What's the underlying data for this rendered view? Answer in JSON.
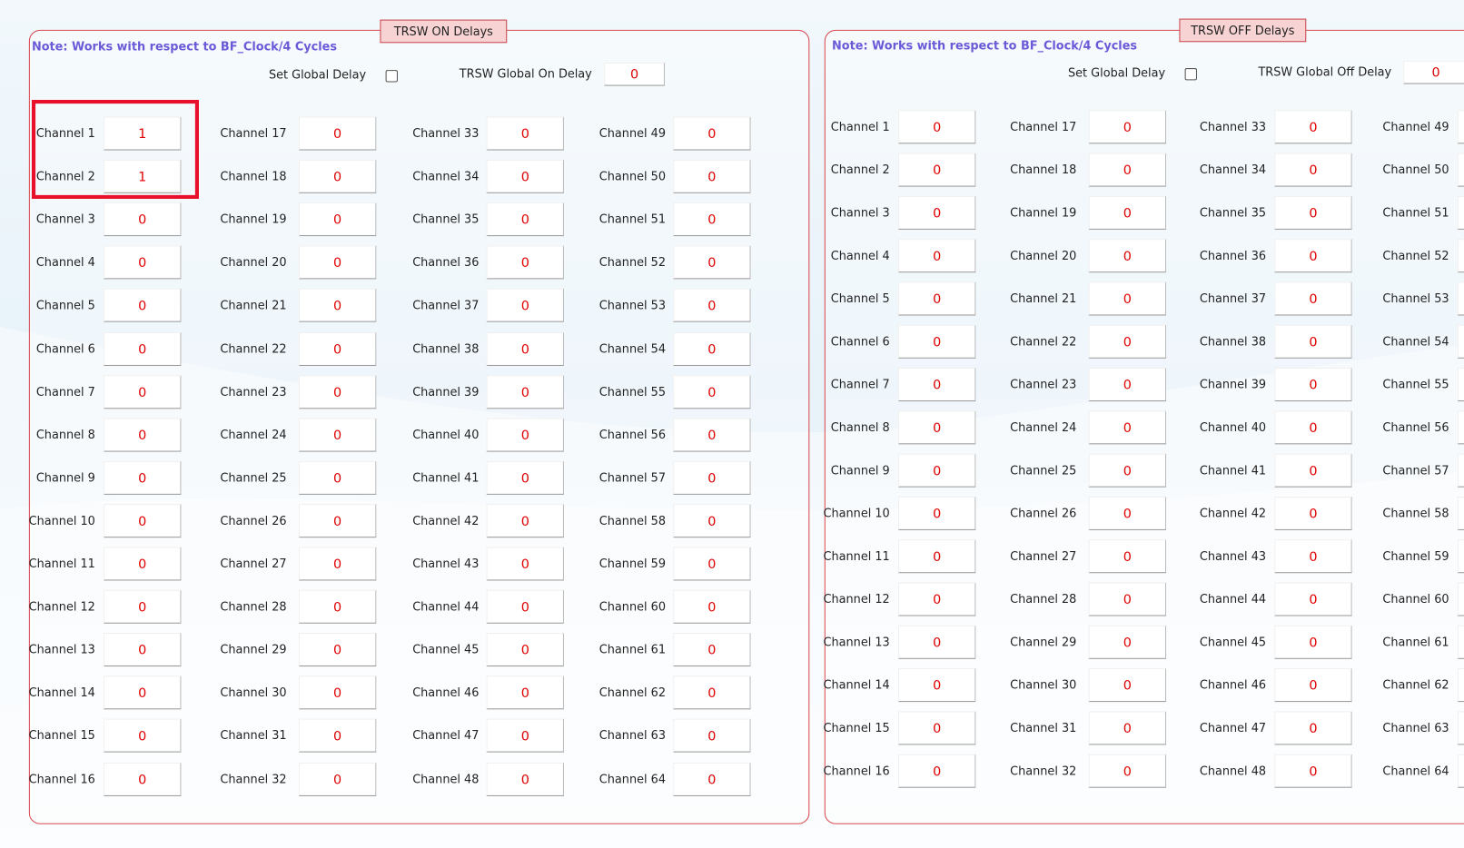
{
  "panels": [
    {
      "title": "TRSW ON Delays",
      "note": "Note: Works with respect to BF_Clock/4 Cycles",
      "set_global_label": "Set Global Delay",
      "global_label": "TRSW Global On Delay",
      "global_value": 0,
      "channels": [
        {
          "label": "Channel 1",
          "value": 1
        },
        {
          "label": "Channel 2",
          "value": 1
        },
        {
          "label": "Channel 3",
          "value": 0
        },
        {
          "label": "Channel 4",
          "value": 0
        },
        {
          "label": "Channel 5",
          "value": 0
        },
        {
          "label": "Channel 6",
          "value": 0
        },
        {
          "label": "Channel 7",
          "value": 0
        },
        {
          "label": "Channel 8",
          "value": 0
        },
        {
          "label": "Channel 9",
          "value": 0
        },
        {
          "label": "Channel 10",
          "value": 0
        },
        {
          "label": "Channel 11",
          "value": 0
        },
        {
          "label": "Channel 12",
          "value": 0
        },
        {
          "label": "Channel 13",
          "value": 0
        },
        {
          "label": "Channel 14",
          "value": 0
        },
        {
          "label": "Channel 15",
          "value": 0
        },
        {
          "label": "Channel 16",
          "value": 0
        },
        {
          "label": "Channel 17",
          "value": 0
        },
        {
          "label": "Channel 18",
          "value": 0
        },
        {
          "label": "Channel 19",
          "value": 0
        },
        {
          "label": "Channel 20",
          "value": 0
        },
        {
          "label": "Channel 21",
          "value": 0
        },
        {
          "label": "Channel 22",
          "value": 0
        },
        {
          "label": "Channel 23",
          "value": 0
        },
        {
          "label": "Channel 24",
          "value": 0
        },
        {
          "label": "Channel 25",
          "value": 0
        },
        {
          "label": "Channel 26",
          "value": 0
        },
        {
          "label": "Channel 27",
          "value": 0
        },
        {
          "label": "Channel 28",
          "value": 0
        },
        {
          "label": "Channel 29",
          "value": 0
        },
        {
          "label": "Channel 30",
          "value": 0
        },
        {
          "label": "Channel 31",
          "value": 0
        },
        {
          "label": "Channel 32",
          "value": 0
        },
        {
          "label": "Channel 33",
          "value": 0
        },
        {
          "label": "Channel 34",
          "value": 0
        },
        {
          "label": "Channel 35",
          "value": 0
        },
        {
          "label": "Channel 36",
          "value": 0
        },
        {
          "label": "Channel 37",
          "value": 0
        },
        {
          "label": "Channel 38",
          "value": 0
        },
        {
          "label": "Channel 39",
          "value": 0
        },
        {
          "label": "Channel 40",
          "value": 0
        },
        {
          "label": "Channel 41",
          "value": 0
        },
        {
          "label": "Channel 42",
          "value": 0
        },
        {
          "label": "Channel 43",
          "value": 0
        },
        {
          "label": "Channel 44",
          "value": 0
        },
        {
          "label": "Channel 45",
          "value": 0
        },
        {
          "label": "Channel 46",
          "value": 0
        },
        {
          "label": "Channel 47",
          "value": 0
        },
        {
          "label": "Channel 48",
          "value": 0
        },
        {
          "label": "Channel 49",
          "value": 0
        },
        {
          "label": "Channel 50",
          "value": 0
        },
        {
          "label": "Channel 51",
          "value": 0
        },
        {
          "label": "Channel 52",
          "value": 0
        },
        {
          "label": "Channel 53",
          "value": 0
        },
        {
          "label": "Channel 54",
          "value": 0
        },
        {
          "label": "Channel 55",
          "value": 0
        },
        {
          "label": "Channel 56",
          "value": 0
        },
        {
          "label": "Channel 57",
          "value": 0
        },
        {
          "label": "Channel 58",
          "value": 0
        },
        {
          "label": "Channel 59",
          "value": 0
        },
        {
          "label": "Channel 60",
          "value": 0
        },
        {
          "label": "Channel 61",
          "value": 0
        },
        {
          "label": "Channel 62",
          "value": 0
        },
        {
          "label": "Channel 63",
          "value": 0
        },
        {
          "label": "Channel 64",
          "value": 0
        }
      ]
    },
    {
      "title": "TRSW OFF Delays",
      "note": "Note: Works with respect to BF_Clock/4 Cycles",
      "set_global_label": "Set Global Delay",
      "global_label": "TRSW Global Off Delay",
      "global_value": 0,
      "channels": [
        {
          "label": "Channel 1",
          "value": 0
        },
        {
          "label": "Channel 2",
          "value": 0
        },
        {
          "label": "Channel 3",
          "value": 0
        },
        {
          "label": "Channel 4",
          "value": 0
        },
        {
          "label": "Channel 5",
          "value": 0
        },
        {
          "label": "Channel 6",
          "value": 0
        },
        {
          "label": "Channel 7",
          "value": 0
        },
        {
          "label": "Channel 8",
          "value": 0
        },
        {
          "label": "Channel 9",
          "value": 0
        },
        {
          "label": "Channel 10",
          "value": 0
        },
        {
          "label": "Channel 11",
          "value": 0
        },
        {
          "label": "Channel 12",
          "value": 0
        },
        {
          "label": "Channel 13",
          "value": 0
        },
        {
          "label": "Channel 14",
          "value": 0
        },
        {
          "label": "Channel 15",
          "value": 0
        },
        {
          "label": "Channel 16",
          "value": 0
        },
        {
          "label": "Channel 17",
          "value": 0
        },
        {
          "label": "Channel 18",
          "value": 0
        },
        {
          "label": "Channel 19",
          "value": 0
        },
        {
          "label": "Channel 20",
          "value": 0
        },
        {
          "label": "Channel 21",
          "value": 0
        },
        {
          "label": "Channel 22",
          "value": 0
        },
        {
          "label": "Channel 23",
          "value": 0
        },
        {
          "label": "Channel 24",
          "value": 0
        },
        {
          "label": "Channel 25",
          "value": 0
        },
        {
          "label": "Channel 26",
          "value": 0
        },
        {
          "label": "Channel 27",
          "value": 0
        },
        {
          "label": "Channel 28",
          "value": 0
        },
        {
          "label": "Channel 29",
          "value": 0
        },
        {
          "label": "Channel 30",
          "value": 0
        },
        {
          "label": "Channel 31",
          "value": 0
        },
        {
          "label": "Channel 32",
          "value": 0
        },
        {
          "label": "Channel 33",
          "value": 0
        },
        {
          "label": "Channel 34",
          "value": 0
        },
        {
          "label": "Channel 35",
          "value": 0
        },
        {
          "label": "Channel 36",
          "value": 0
        },
        {
          "label": "Channel 37",
          "value": 0
        },
        {
          "label": "Channel 38",
          "value": 0
        },
        {
          "label": "Channel 39",
          "value": 0
        },
        {
          "label": "Channel 40",
          "value": 0
        },
        {
          "label": "Channel 41",
          "value": 0
        },
        {
          "label": "Channel 42",
          "value": 0
        },
        {
          "label": "Channel 43",
          "value": 0
        },
        {
          "label": "Channel 44",
          "value": 0
        },
        {
          "label": "Channel 45",
          "value": 0
        },
        {
          "label": "Channel 46",
          "value": 0
        },
        {
          "label": "Channel 47",
          "value": 0
        },
        {
          "label": "Channel 48",
          "value": 0
        },
        {
          "label": "Channel 49"
        },
        {
          "label": "Channel 50"
        },
        {
          "label": "Channel 51"
        },
        {
          "label": "Channel 52"
        },
        {
          "label": "Channel 53"
        },
        {
          "label": "Channel 54"
        },
        {
          "label": "Channel 55"
        },
        {
          "label": "Channel 56"
        },
        {
          "label": "Channel 57"
        },
        {
          "label": "Channel 58"
        },
        {
          "label": "Channel 59"
        },
        {
          "label": "Channel 60"
        },
        {
          "label": "Channel 61"
        },
        {
          "label": "Channel 62"
        },
        {
          "label": "Channel 63"
        },
        {
          "label": "Channel 64"
        }
      ]
    }
  ]
}
